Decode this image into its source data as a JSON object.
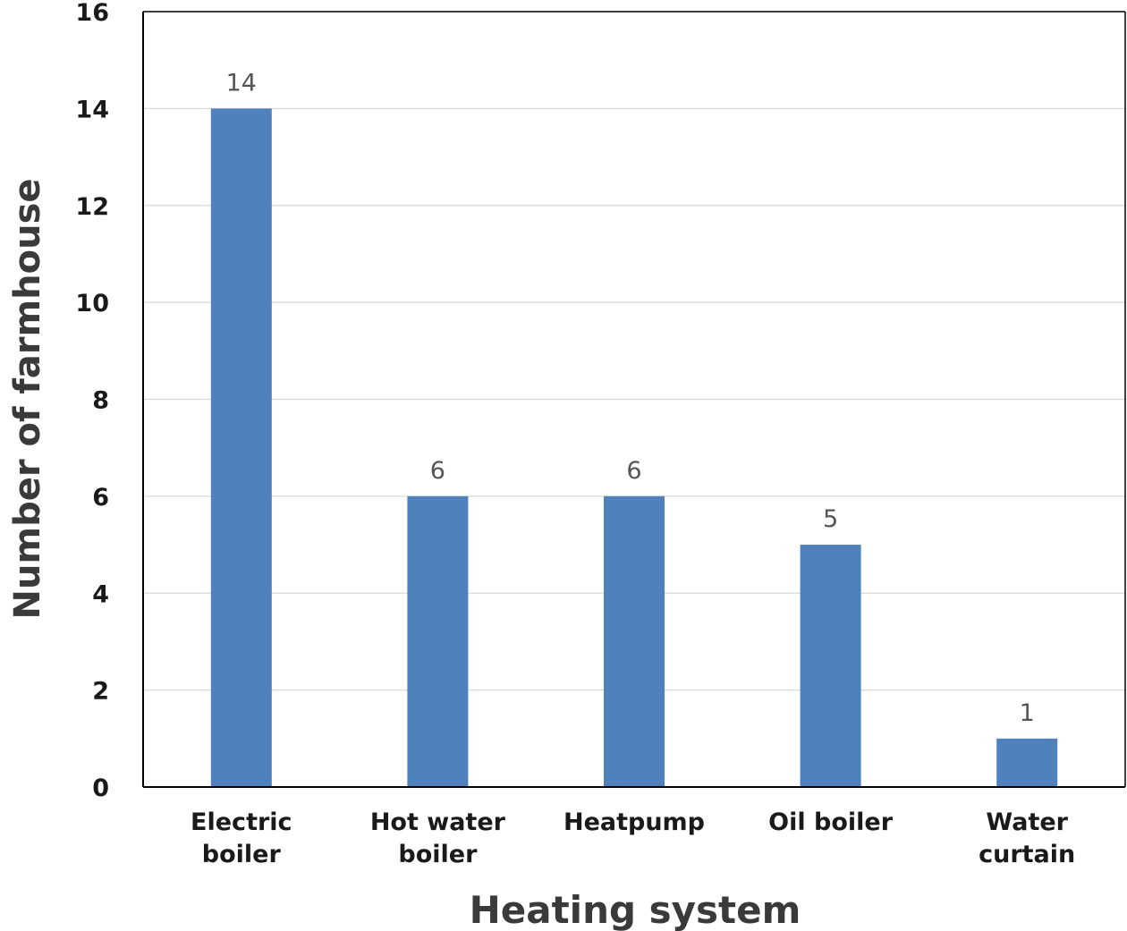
{
  "chart_data": {
    "type": "bar",
    "categories": [
      [
        "Electric",
        "boiler"
      ],
      [
        "Hot water",
        "boiler"
      ],
      [
        "Heatpump"
      ],
      [
        "Oil boiler"
      ],
      [
        "Water",
        "curtain"
      ]
    ],
    "values": [
      14,
      6,
      6,
      5,
      1
    ],
    "data_labels": [
      "14",
      "6",
      "6",
      "5",
      "1"
    ],
    "title": "",
    "xlabel": "Heating system",
    "ylabel": "Number of farmhouse",
    "ylim": [
      0,
      16
    ],
    "yticks": [
      0,
      2,
      4,
      6,
      8,
      10,
      12,
      14,
      16
    ],
    "grid": "horizontal",
    "legend": "none",
    "bar_color": "#4f81bd",
    "grid_color": "#d9d9d9",
    "axis_color": "#000000"
  }
}
